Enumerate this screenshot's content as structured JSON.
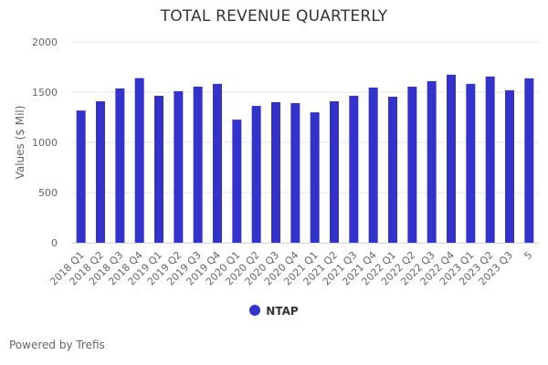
{
  "chart_data": {
    "type": "bar",
    "title": "TOTAL REVENUE QUARTERLY",
    "xlabel": "",
    "ylabel": "Values ($ Mil)",
    "ylim": [
      0,
      2000
    ],
    "yticks": [
      0,
      500,
      1000,
      1500,
      2000
    ],
    "grid": true,
    "categories": [
      "2018 Q1",
      "2018 Q2",
      "2018 Q3",
      "2018 Q4",
      "2019 Q1",
      "2019 Q2",
      "2019 Q3",
      "2019 Q4",
      "2020 Q1",
      "2020 Q2",
      "2020 Q3",
      "2020 Q4",
      "2021 Q1",
      "2021 Q2",
      "2021 Q3",
      "2021 Q4",
      "2022 Q1",
      "2022 Q2",
      "2022 Q3",
      "2022 Q4",
      "2023 Q1",
      "2023 Q2",
      "2023 Q3",
      "5"
    ],
    "series": [
      {
        "name": "NTAP",
        "color": "#3333cc",
        "values": [
          1317,
          1409,
          1537,
          1640,
          1464,
          1510,
          1555,
          1583,
          1226,
          1363,
          1400,
          1391,
          1299,
          1409,
          1464,
          1546,
          1455,
          1555,
          1610,
          1674,
          1583,
          1656,
          1519,
          1638
        ]
      }
    ],
    "legend_position": "bottom-center"
  },
  "footer": {
    "text": "Powered by Trefis"
  }
}
